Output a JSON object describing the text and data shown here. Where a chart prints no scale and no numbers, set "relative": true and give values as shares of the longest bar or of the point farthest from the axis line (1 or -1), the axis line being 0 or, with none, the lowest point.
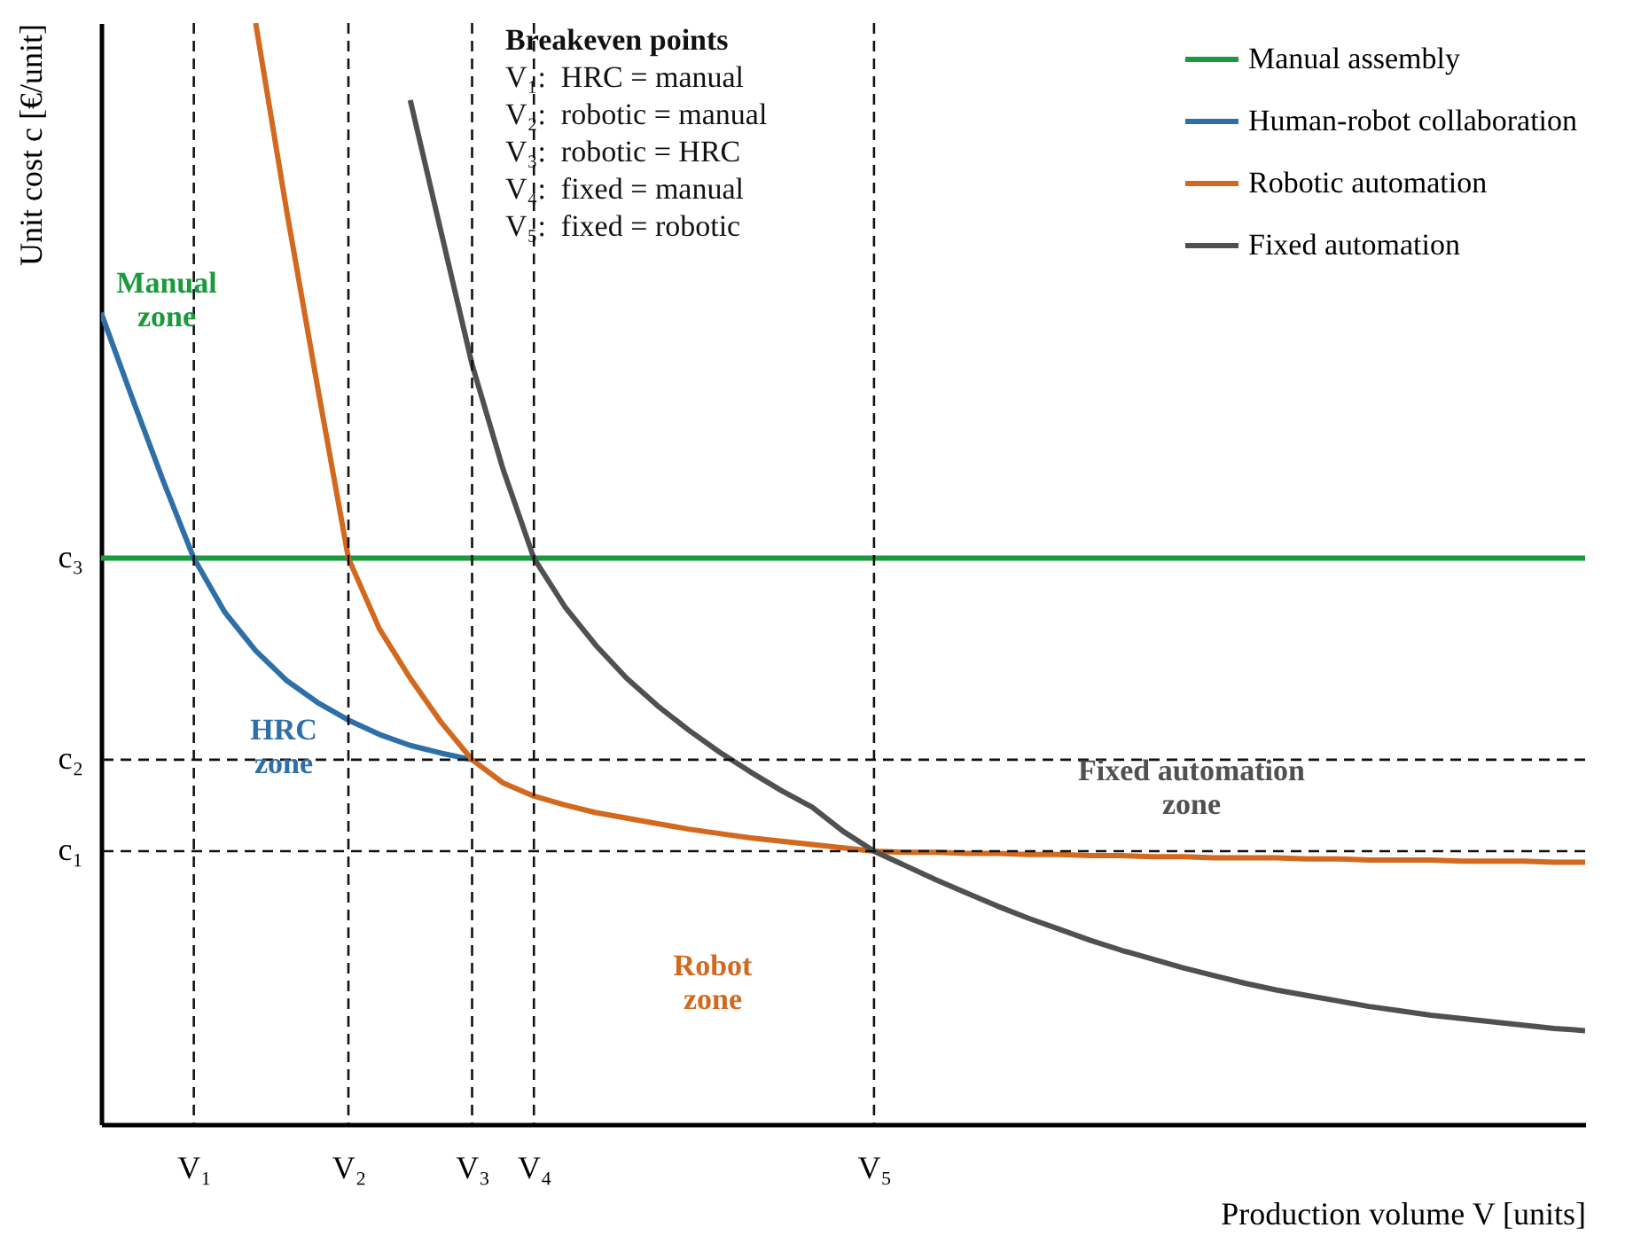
{
  "chart_data": {
    "type": "line",
    "relative": true,
    "xlabel": "Production volume V [units]",
    "ylabel": "Unit cost c [€/unit]",
    "categories": [
      null,
      null,
      null,
      "V₁",
      null,
      null,
      null,
      null,
      "V₂",
      null,
      null,
      null,
      "V₃",
      null,
      "V₄",
      null,
      null,
      null,
      null,
      null,
      null,
      null,
      null,
      null,
      null,
      "V₅",
      null,
      null,
      null,
      null,
      null,
      null,
      null,
      null,
      null,
      null,
      null,
      null,
      null,
      null,
      null,
      null,
      null,
      null,
      null,
      null,
      null,
      null,
      null
    ],
    "legend": "top right",
    "marker": "none",
    "line_style": "solid",
    "series": [
      {
        "name": "Manual assembly",
        "color": "#1a9a3c",
        "values": [
          0.514,
          0.514,
          0.514,
          0.514,
          0.514,
          0.514,
          0.514,
          0.514,
          0.514,
          0.514,
          0.514,
          0.514,
          0.514,
          0.514,
          0.514,
          0.514,
          0.514,
          0.514,
          0.514,
          0.514,
          0.514,
          0.514,
          0.514,
          0.514,
          0.514,
          0.514,
          0.514,
          0.514,
          0.514,
          0.514,
          0.514,
          0.514,
          0.514,
          0.514,
          0.514,
          0.514,
          0.514,
          0.514,
          0.514,
          0.514,
          0.514,
          0.514,
          0.514,
          0.514,
          0.514,
          0.514,
          0.514,
          0.514,
          0.514
        ]
      },
      {
        "name": "Human-robot collaboration",
        "color": "#2f6fa8",
        "values": [
          0.737,
          0.66,
          0.585,
          0.514,
          0.465,
          0.43,
          0.403,
          0.383,
          0.367,
          0.354,
          0.344,
          0.337,
          0.331,
          null,
          null,
          null,
          null,
          null,
          null,
          null,
          null,
          null,
          null,
          null,
          null,
          null,
          null,
          null,
          null,
          null,
          null,
          null,
          null,
          null,
          null,
          null,
          null,
          null,
          null,
          null,
          null,
          null,
          null,
          null,
          null,
          null,
          null,
          null,
          null
        ]
      },
      {
        "name": "Robotic automation",
        "color": "#d2691e",
        "values": [
          null,
          null,
          null,
          null,
          null,
          1,
          0.83,
          0.67,
          0.514,
          0.45,
          0.405,
          0.365,
          0.331,
          0.31,
          0.298,
          0.29,
          0.283,
          0.278,
          0.273,
          0.268,
          0.264,
          0.26,
          0.257,
          0.254,
          0.251,
          0.248,
          0.247,
          0.247,
          0.246,
          0.246,
          0.245,
          0.245,
          0.244,
          0.244,
          0.243,
          0.243,
          0.242,
          0.242,
          0.242,
          0.241,
          0.241,
          0.24,
          0.24,
          0.24,
          0.239,
          0.239,
          0.239,
          0.238,
          0.238
        ]
      },
      {
        "name": "Fixed automation",
        "color": "#505050",
        "values": [
          null,
          null,
          null,
          null,
          null,
          null,
          null,
          null,
          null,
          null,
          0.93,
          0.81,
          0.69,
          0.595,
          0.514,
          0.47,
          0.435,
          0.405,
          0.38,
          0.358,
          0.338,
          0.32,
          0.303,
          0.288,
          0.266,
          0.248,
          0.235,
          0.222,
          0.21,
          0.198,
          0.187,
          0.177,
          0.167,
          0.158,
          0.15,
          0.142,
          0.135,
          0.128,
          0.122,
          0.117,
          0.112,
          0.107,
          0.103,
          0.099,
          0.096,
          0.093,
          0.09,
          0.087,
          0.085
        ]
      }
    ],
    "ref_lines": [
      {
        "axis": "x",
        "value": "V₁",
        "line_style": "dashed"
      },
      {
        "axis": "x",
        "value": "V₂",
        "line_style": "dashed"
      },
      {
        "axis": "x",
        "value": "V₃",
        "line_style": "dashed"
      },
      {
        "axis": "x",
        "value": "V₄",
        "line_style": "dashed"
      },
      {
        "axis": "x",
        "value": "V₅",
        "line_style": "dashed"
      },
      {
        "axis": "y",
        "value": 0.331,
        "label": "c₂",
        "line_style": "dashed"
      },
      {
        "axis": "y",
        "value": 0.248,
        "label": "c₁",
        "line_style": "dashed"
      }
    ],
    "annotations": [
      "Breakeven points",
      "V₁:  HRC = manual",
      "V₂:  robotic = manual",
      "V₃:  robotic = HRC",
      "V₄:  fixed = manual",
      "V₅:  fixed = robotic",
      "Manual zone",
      "HRC zone",
      "Robot zone",
      "Fixed automation zone",
      "c₃"
    ]
  }
}
